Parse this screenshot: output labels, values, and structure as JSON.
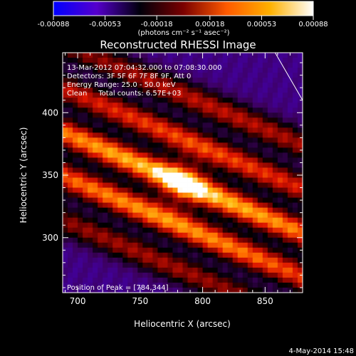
{
  "chart_data": {
    "type": "heatmap",
    "title": "Reconstructed RHESSI Image",
    "colorbar": {
      "tick_labels": [
        "-0.00088",
        "-0.00053",
        "-0.00018",
        "0.00018",
        "0.00053",
        "0.00088"
      ],
      "tick_values": [
        -0.00088,
        -0.00053,
        -0.00018,
        0.00018,
        0.00053,
        0.00088
      ],
      "range": [
        -0.00088,
        0.00088
      ],
      "unit_label": "(photons cm⁻² s⁻¹ asec⁻²)",
      "colors": [
        "#0000ff",
        "#5500cc",
        "#00000a",
        "#7a0000",
        "#ff5a00",
        "#ffb000",
        "#ffffff"
      ]
    },
    "annotations": [
      "13-Mar-2012 07:04:32.000 to 07:08:30.000",
      "Detectors: 3F 5F 6F 7F 8F 9F, Att 0",
      "Energy Range: 25.0 - 50.0 keV",
      "Clean     Total counts: 6.57E+03"
    ],
    "peak_label": "Position of Peak = [784,344]",
    "peak": {
      "x": 784,
      "y": 344
    },
    "xlabel": "Heliocentric X (arcsec)",
    "ylabel": "Heliocentric Y (arcsec)",
    "xlim": [
      688,
      880
    ],
    "ylim": [
      256,
      448
    ],
    "x_ticks": [
      700,
      750,
      800,
      850
    ],
    "y_ticks": [
      300,
      350,
      400
    ],
    "ridges": [
      {
        "offset": -220,
        "amp": 0.55
      },
      {
        "offset": -110,
        "amp": 0.9
      },
      {
        "offset": 0,
        "amp": 1.0
      },
      {
        "offset": 110,
        "amp": 0.75
      },
      {
        "offset": 220,
        "amp": 0.6
      }
    ],
    "limb_line": [
      [
        858,
        448
      ],
      [
        880,
        410
      ]
    ]
  },
  "footer": {
    "date": "4-May-2014 15:48"
  }
}
